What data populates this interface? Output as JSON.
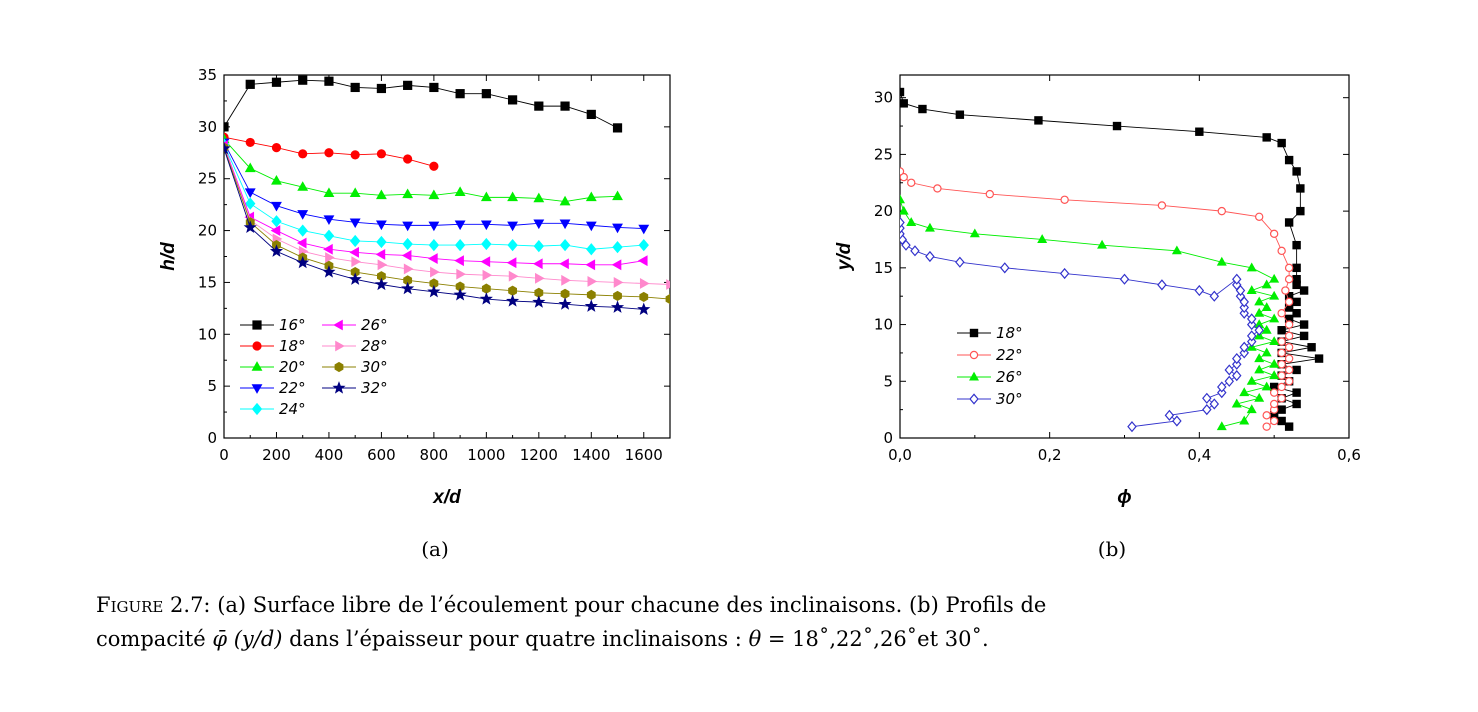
{
  "figure": {
    "sublabel_a": "(a)",
    "sublabel_b": "(b)",
    "caption": {
      "figure_word": "Figure 2.7:",
      "line1_rest": " (a) Surface libre de l’écoulement pour chacune des inclinaisons. (b) Profils de",
      "line2_a": "compacité ",
      "phi_symbol": "φ̄",
      "phi_arg": " (y/d)",
      "line2_b": " dans l’épaisseur pour quatre inclinaisons : ",
      "theta_expr": "θ",
      "line2_c": " = 18˚,22˚,26˚et 30˚."
    }
  },
  "chart_data": [
    {
      "type": "line",
      "id": "a",
      "xlabel": "x/d",
      "ylabel": "h/d",
      "xlim": [
        0,
        1700
      ],
      "ylim": [
        0,
        35
      ],
      "xticks": [
        0,
        200,
        400,
        600,
        800,
        1000,
        1200,
        1400,
        1600
      ],
      "yticks": [
        0,
        5,
        10,
        15,
        20,
        25,
        30,
        35
      ],
      "grid": false,
      "legend_position": "bottom-left",
      "series": [
        {
          "name": "16°",
          "color": "#000000",
          "marker": "square",
          "x": [
            0,
            100,
            200,
            300,
            400,
            500,
            600,
            700,
            800,
            900,
            1000,
            1100,
            1200,
            1300,
            1400,
            1500
          ],
          "y": [
            30.0,
            34.1,
            34.3,
            34.5,
            34.4,
            33.8,
            33.7,
            34.0,
            33.8,
            33.2,
            33.2,
            32.6,
            32.0,
            32.0,
            31.2,
            29.9
          ]
        },
        {
          "name": "18°",
          "color": "#ff0000",
          "marker": "circle",
          "x": [
            0,
            100,
            200,
            300,
            400,
            500,
            600,
            700,
            800
          ],
          "y": [
            29.0,
            28.5,
            28.0,
            27.4,
            27.5,
            27.3,
            27.4,
            26.9,
            26.2
          ]
        },
        {
          "name": "20°",
          "color": "#00ee00",
          "marker": "triangle-up",
          "x": [
            0,
            100,
            200,
            300,
            400,
            500,
            600,
            700,
            800,
            900,
            1000,
            1100,
            1200,
            1300,
            1400,
            1500
          ],
          "y": [
            28.8,
            26.0,
            24.8,
            24.2,
            23.6,
            23.6,
            23.4,
            23.5,
            23.4,
            23.7,
            23.2,
            23.2,
            23.1,
            22.8,
            23.2,
            23.3
          ]
        },
        {
          "name": "22°",
          "color": "#0000ff",
          "marker": "triangle-down",
          "x": [
            0,
            100,
            200,
            300,
            400,
            500,
            600,
            700,
            800,
            900,
            1000,
            1100,
            1200,
            1300,
            1400,
            1500,
            1600
          ],
          "y": [
            28.5,
            23.7,
            22.4,
            21.6,
            21.1,
            20.8,
            20.6,
            20.5,
            20.5,
            20.6,
            20.6,
            20.5,
            20.7,
            20.7,
            20.5,
            20.3,
            20.2
          ]
        },
        {
          "name": "24°",
          "color": "#00ffff",
          "marker": "diamond",
          "x": [
            0,
            100,
            200,
            300,
            400,
            500,
            600,
            700,
            800,
            900,
            1000,
            1100,
            1200,
            1300,
            1400,
            1500,
            1600
          ],
          "y": [
            28.3,
            22.6,
            20.9,
            20.0,
            19.5,
            19.0,
            18.9,
            18.7,
            18.6,
            18.6,
            18.7,
            18.6,
            18.5,
            18.6,
            18.2,
            18.4,
            18.6
          ]
        },
        {
          "name": "26°",
          "color": "#ff00ff",
          "marker": "triangle-left",
          "x": [
            0,
            100,
            200,
            300,
            400,
            500,
            600,
            700,
            800,
            900,
            1000,
            1100,
            1200,
            1300,
            1400,
            1500,
            1600
          ],
          "y": [
            28.2,
            21.3,
            20.0,
            18.8,
            18.2,
            17.9,
            17.7,
            17.6,
            17.3,
            17.1,
            17.0,
            16.9,
            16.8,
            16.8,
            16.7,
            16.7,
            17.1
          ]
        },
        {
          "name": "28°",
          "color": "#ff88cc",
          "marker": "triangle-right",
          "x": [
            0,
            100,
            200,
            300,
            400,
            500,
            600,
            700,
            800,
            900,
            1000,
            1100,
            1200,
            1300,
            1400,
            1500,
            1600,
            1700
          ],
          "y": [
            28.1,
            21.0,
            19.2,
            18.0,
            17.4,
            17.0,
            16.7,
            16.3,
            16.0,
            15.8,
            15.7,
            15.6,
            15.4,
            15.2,
            15.1,
            15.0,
            14.9,
            14.8
          ]
        },
        {
          "name": "30°",
          "color": "#8b8000",
          "marker": "hexagon",
          "x": [
            0,
            100,
            200,
            300,
            400,
            500,
            600,
            700,
            800,
            900,
            1000,
            1100,
            1200,
            1300,
            1400,
            1500,
            1600,
            1700
          ],
          "y": [
            28.0,
            20.8,
            18.6,
            17.4,
            16.6,
            16.0,
            15.6,
            15.2,
            14.9,
            14.6,
            14.4,
            14.2,
            14.0,
            13.9,
            13.8,
            13.7,
            13.6,
            13.4
          ]
        },
        {
          "name": "32°",
          "color": "#000080",
          "marker": "star",
          "x": [
            0,
            100,
            200,
            300,
            400,
            500,
            600,
            700,
            800,
            900,
            1000,
            1100,
            1200,
            1300,
            1400,
            1500,
            1600
          ],
          "y": [
            27.9,
            20.3,
            18.0,
            16.9,
            16.0,
            15.3,
            14.8,
            14.4,
            14.1,
            13.8,
            13.4,
            13.2,
            13.1,
            12.9,
            12.7,
            12.6,
            12.4
          ]
        }
      ]
    },
    {
      "type": "line",
      "id": "b",
      "xlabel": "ϕ",
      "ylabel": "y/d",
      "xlim": [
        0,
        0.6
      ],
      "ylim": [
        0,
        32
      ],
      "xticks": [
        0,
        0.2,
        0.4,
        0.6
      ],
      "xtick_labels": [
        "0,0",
        "0,2",
        "0,4",
        "0,6"
      ],
      "yticks": [
        0,
        5,
        10,
        15,
        20,
        25,
        30
      ],
      "grid": false,
      "legend_position": "bottom-left",
      "series": [
        {
          "name": "18°",
          "color": "#000000",
          "marker": "square",
          "filled": true,
          "x": [
            0.52,
            0.51,
            0.5,
            0.51,
            0.53,
            0.51,
            0.53,
            0.5,
            0.52,
            0.51,
            0.53,
            0.51,
            0.56,
            0.51,
            0.55,
            0.51,
            0.54,
            0.51,
            0.54,
            0.52,
            0.53,
            0.52,
            0.53,
            0.52,
            0.54,
            0.53,
            0.53,
            0.53,
            0.53,
            0.52,
            0.535,
            0.535,
            0.53,
            0.52,
            0.51,
            0.49,
            0.4,
            0.29,
            0.185,
            0.08,
            0.03,
            0.005,
            0.0
          ],
          "y": [
            1.0,
            1.5,
            2.0,
            2.5,
            3.0,
            3.5,
            4.0,
            4.5,
            5.0,
            5.5,
            6.0,
            6.5,
            7.0,
            7.5,
            8.0,
            8.5,
            9.0,
            9.5,
            10.0,
            10.5,
            11.0,
            11.5,
            12.0,
            12.5,
            13.0,
            13.5,
            14.0,
            15.0,
            17.0,
            19.0,
            20.0,
            22.0,
            23.5,
            24.5,
            26.0,
            26.5,
            27.0,
            27.5,
            28.0,
            28.5,
            29.0,
            29.5,
            30.5
          ]
        },
        {
          "name": "22°",
          "color": "#ff5555",
          "marker": "circle",
          "filled": false,
          "x": [
            0.49,
            0.5,
            0.49,
            0.5,
            0.5,
            0.51,
            0.5,
            0.51,
            0.52,
            0.51,
            0.52,
            0.51,
            0.52,
            0.51,
            0.52,
            0.51,
            0.52,
            0.52,
            0.51,
            0.52,
            0.515,
            0.52,
            0.52,
            0.51,
            0.5,
            0.48,
            0.43,
            0.35,
            0.22,
            0.12,
            0.05,
            0.015,
            0.005,
            0.0
          ],
          "y": [
            1.0,
            1.5,
            2.0,
            2.5,
            3.0,
            3.5,
            4.0,
            4.5,
            5.0,
            5.5,
            6.0,
            6.5,
            7.0,
            7.5,
            8.0,
            8.5,
            9.0,
            10.0,
            11.0,
            12.0,
            13.0,
            14.0,
            15.0,
            16.5,
            18.0,
            19.5,
            20.0,
            20.5,
            21.0,
            21.5,
            22.0,
            22.5,
            23.0,
            23.5
          ]
        },
        {
          "name": "26°",
          "color": "#00ee00",
          "marker": "triangle-up",
          "filled": true,
          "x": [
            0.43,
            0.46,
            0.47,
            0.45,
            0.48,
            0.46,
            0.49,
            0.47,
            0.5,
            0.48,
            0.5,
            0.48,
            0.49,
            0.47,
            0.5,
            0.48,
            0.49,
            0.48,
            0.5,
            0.48,
            0.49,
            0.48,
            0.5,
            0.47,
            0.49,
            0.5,
            0.47,
            0.43,
            0.37,
            0.27,
            0.19,
            0.1,
            0.04,
            0.015,
            0.005,
            0.0
          ],
          "y": [
            1.0,
            1.5,
            2.5,
            3.0,
            3.5,
            4.0,
            4.5,
            5.0,
            5.5,
            6.0,
            6.5,
            7.0,
            7.5,
            8.0,
            8.5,
            9.0,
            9.5,
            10.0,
            10.5,
            11.0,
            11.5,
            12.0,
            12.5,
            13.0,
            13.5,
            14.0,
            15.0,
            15.5,
            16.5,
            17.0,
            17.5,
            18.0,
            18.5,
            19.0,
            20.0,
            21.0
          ]
        },
        {
          "name": "30°",
          "color": "#3333cc",
          "marker": "diamond",
          "filled": false,
          "x": [
            0.31,
            0.37,
            0.36,
            0.41,
            0.42,
            0.41,
            0.43,
            0.43,
            0.44,
            0.45,
            0.44,
            0.45,
            0.45,
            0.46,
            0.46,
            0.47,
            0.47,
            0.48,
            0.47,
            0.47,
            0.46,
            0.46,
            0.46,
            0.455,
            0.455,
            0.45,
            0.45,
            0.42,
            0.4,
            0.35,
            0.3,
            0.22,
            0.14,
            0.08,
            0.04,
            0.02,
            0.008,
            0.003,
            0.0,
            0.0,
            0.0
          ],
          "y": [
            1.0,
            1.5,
            2.0,
            2.5,
            3.0,
            3.5,
            4.0,
            4.5,
            5.0,
            5.5,
            6.0,
            6.5,
            7.0,
            7.5,
            8.0,
            8.5,
            9.0,
            9.5,
            10.0,
            10.5,
            11.0,
            11.5,
            12.0,
            12.5,
            13.0,
            13.5,
            14.0,
            12.5,
            13.0,
            13.5,
            14.0,
            14.5,
            15.0,
            15.5,
            16.0,
            16.5,
            17.0,
            17.5,
            18.0,
            18.5,
            19.0
          ]
        }
      ]
    }
  ]
}
